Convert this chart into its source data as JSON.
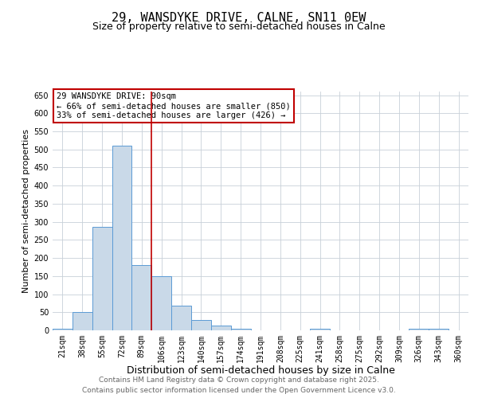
{
  "title": "29, WANSDYKE DRIVE, CALNE, SN11 0EW",
  "subtitle": "Size of property relative to semi-detached houses in Calne",
  "xlabel": "Distribution of semi-detached houses by size in Calne",
  "ylabel": "Number of semi-detached properties",
  "bin_labels": [
    "21sqm",
    "38sqm",
    "55sqm",
    "72sqm",
    "89sqm",
    "106sqm",
    "123sqm",
    "140sqm",
    "157sqm",
    "174sqm",
    "191sqm",
    "208sqm",
    "225sqm",
    "241sqm",
    "258sqm",
    "275sqm",
    "292sqm",
    "309sqm",
    "326sqm",
    "343sqm",
    "360sqm"
  ],
  "bar_heights": [
    5,
    50,
    285,
    510,
    180,
    150,
    68,
    28,
    13,
    5,
    0,
    0,
    0,
    4,
    0,
    0,
    0,
    0,
    5,
    5,
    0
  ],
  "bar_color": "#c9d9e8",
  "bar_edge_color": "#5b9bd5",
  "vline_x_bin": 4,
  "vline_color": "#c00000",
  "annotation_lines": [
    "29 WANSDYKE DRIVE: 90sqm",
    "← 66% of semi-detached houses are smaller (850)",
    "33% of semi-detached houses are larger (426) →"
  ],
  "annotation_box_color": "#c00000",
  "ylim": [
    0,
    660
  ],
  "yticks": [
    0,
    50,
    100,
    150,
    200,
    250,
    300,
    350,
    400,
    450,
    500,
    550,
    600,
    650
  ],
  "background_color": "#ffffff",
  "grid_color": "#c8d0d8",
  "footer_line1": "Contains HM Land Registry data © Crown copyright and database right 2025.",
  "footer_line2": "Contains public sector information licensed under the Open Government Licence v3.0.",
  "title_fontsize": 11,
  "subtitle_fontsize": 9,
  "xlabel_fontsize": 9,
  "ylabel_fontsize": 8,
  "tick_fontsize": 7,
  "annotation_fontsize": 7.5,
  "footer_fontsize": 6.5
}
